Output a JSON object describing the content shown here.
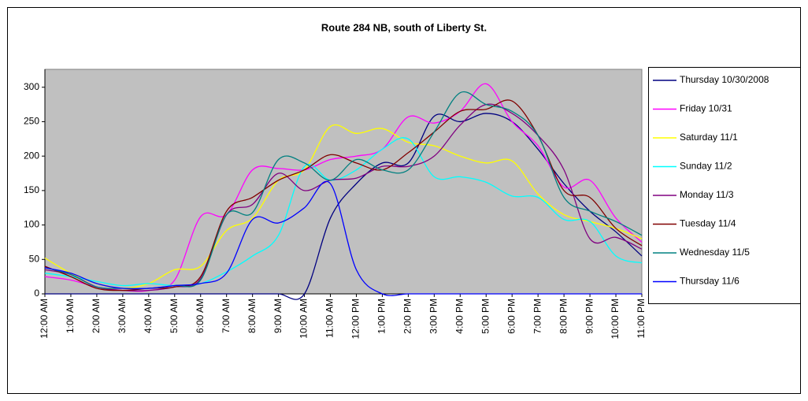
{
  "chart_data": {
    "type": "line",
    "title": "Route 284 NB, south of Liberty St.",
    "categories": [
      "12:00 AM",
      "1:00 AM",
      "2:00 AM",
      "3:00 AM",
      "4:00 AM",
      "5:00 AM",
      "6:00 AM",
      "7:00 AM",
      "8:00 AM",
      "9:00 AM",
      "10:00 AM",
      "11:00 AM",
      "12:00 PM",
      "1:00 PM",
      "2:00 PM",
      "3:00 PM",
      "4:00 PM",
      "5:00 PM",
      "6:00 PM",
      "7:00 PM",
      "8:00 PM",
      "9:00 PM",
      "10:00 PM",
      "11:00 PM"
    ],
    "series": [
      {
        "name": "Thursday 10/30/2008",
        "color": "#000080",
        "values": [
          0,
          0,
          0,
          0,
          0,
          0,
          0,
          0,
          0,
          0,
          0,
          110,
          160,
          190,
          190,
          258,
          250,
          262,
          250,
          210,
          160,
          120,
          90,
          55
        ]
      },
      {
        "name": "Friday 10/31",
        "color": "#FF00FF",
        "values": [
          25,
          20,
          10,
          5,
          5,
          20,
          112,
          115,
          180,
          182,
          180,
          195,
          200,
          210,
          257,
          248,
          265,
          305,
          250,
          215,
          155,
          165,
          110,
          75
        ]
      },
      {
        "name": "Saturday 11/1",
        "color": "#FFFF00",
        "values": [
          52,
          30,
          15,
          8,
          15,
          35,
          40,
          92,
          110,
          165,
          180,
          243,
          233,
          240,
          220,
          215,
          200,
          190,
          193,
          145,
          115,
          105,
          95,
          80
        ]
      },
      {
        "name": "Sunday 11/2",
        "color": "#00FFFF",
        "values": [
          30,
          25,
          18,
          12,
          15,
          12,
          15,
          32,
          55,
          85,
          185,
          165,
          180,
          210,
          225,
          170,
          170,
          162,
          142,
          140,
          108,
          105,
          55,
          45
        ]
      },
      {
        "name": "Monday 11/3",
        "color": "#800080",
        "values": [
          35,
          28,
          10,
          5,
          5,
          10,
          22,
          115,
          130,
          175,
          150,
          165,
          168,
          185,
          185,
          200,
          245,
          275,
          262,
          230,
          180,
          80,
          82,
          65
        ]
      },
      {
        "name": "Tuesday 11/4",
        "color": "#800000",
        "values": [
          40,
          25,
          8,
          5,
          8,
          10,
          25,
          120,
          140,
          165,
          180,
          202,
          190,
          180,
          205,
          235,
          265,
          268,
          280,
          230,
          150,
          140,
          95,
          70
        ]
      },
      {
        "name": "Wednesday 11/5",
        "color": "#008080",
        "values": [
          38,
          28,
          10,
          8,
          8,
          12,
          20,
          115,
          118,
          195,
          190,
          165,
          195,
          180,
          180,
          235,
          292,
          275,
          265,
          230,
          140,
          120,
          105,
          85
        ]
      },
      {
        "name": "Thursday 11/6",
        "color": "#0000FF",
        "values": [
          38,
          30,
          15,
          8,
          8,
          12,
          15,
          30,
          108,
          103,
          125,
          160,
          35,
          0,
          0,
          0,
          0,
          0,
          0,
          0,
          0,
          0,
          0,
          0
        ]
      }
    ],
    "ylim": [
      0,
      326
    ],
    "yticks": [
      0,
      50,
      100,
      150,
      200,
      250,
      300
    ],
    "plot_background": "#C0C0C0",
    "legend": "right"
  }
}
